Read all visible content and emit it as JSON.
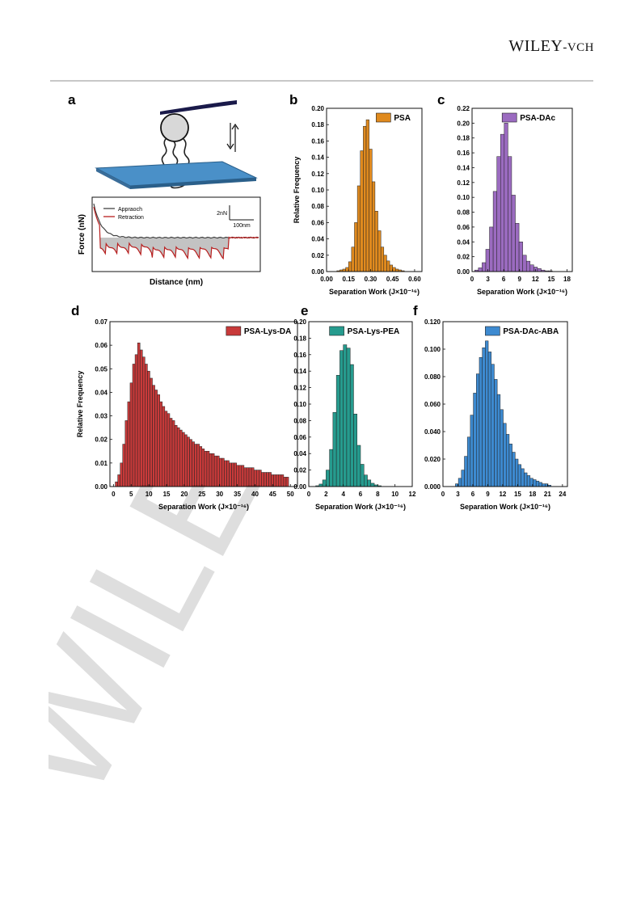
{
  "header": {
    "logo_main": "WILEY",
    "logo_suffix": "-VCH"
  },
  "watermark": "WILEY",
  "panel_a": {
    "letter": "a",
    "xlabel": "Distance (nm)",
    "ylabel": "Force (nN)",
    "legend": [
      "Appraoch",
      "Retraction"
    ],
    "scale_y": "2nN",
    "scale_x": "100nm",
    "colors": {
      "approach": "#444444",
      "retraction": "#b81e1e",
      "fill": "#bdbdbd",
      "substrate": "#4a90c8",
      "probe": "#1a1a4a"
    }
  },
  "charts": [
    {
      "id": "b",
      "letter": "b",
      "type": "bar",
      "legend": "PSA",
      "color": "#e08a1e",
      "xlabel": "Separation Work (J×10⁻¹⁶)",
      "ylabel": "Relative Frequency",
      "xlim": [
        0,
        0.65
      ],
      "ylim": [
        0,
        0.2
      ],
      "xticks": [
        "0.00",
        "0.15",
        "0.30",
        "0.45",
        "0.60"
      ],
      "xtick_values": [
        0,
        0.15,
        0.3,
        0.45,
        0.6
      ],
      "yticks": [
        "0.00",
        "0.02",
        "0.04",
        "0.06",
        "0.08",
        "0.10",
        "0.12",
        "0.14",
        "0.16",
        "0.18",
        "0.20"
      ],
      "bin_start": 0.07,
      "bin_width": 0.02,
      "values": [
        0.001,
        0.002,
        0.003,
        0.005,
        0.012,
        0.03,
        0.06,
        0.105,
        0.148,
        0.178,
        0.186,
        0.15,
        0.11,
        0.074,
        0.05,
        0.03,
        0.02,
        0.013,
        0.008,
        0.005,
        0.003,
        0.002,
        0.001
      ]
    },
    {
      "id": "c",
      "letter": "c",
      "type": "bar",
      "legend": "PSA-DAc",
      "color": "#9b6bc0",
      "xlabel": "Separation Work (J×10⁻¹⁶)",
      "ylabel": "",
      "xlim": [
        0,
        19
      ],
      "ylim": [
        0,
        0.22
      ],
      "xticks": [
        "0",
        "3",
        "6",
        "9",
        "12",
        "15",
        "18"
      ],
      "xtick_values": [
        0,
        3,
        6,
        9,
        12,
        15,
        18
      ],
      "yticks": [
        "0.00",
        "0.02",
        "0.04",
        "0.06",
        "0.08",
        "0.10",
        "0.12",
        "0.14",
        "0.16",
        "0.18",
        "0.20",
        "0.22"
      ],
      "bin_start": 0.5,
      "bin_width": 0.7,
      "values": [
        0.002,
        0.005,
        0.012,
        0.03,
        0.06,
        0.108,
        0.155,
        0.185,
        0.2,
        0.155,
        0.103,
        0.065,
        0.04,
        0.022,
        0.014,
        0.009,
        0.006,
        0.004,
        0.002,
        0.001,
        0.001
      ]
    },
    {
      "id": "d",
      "letter": "d",
      "type": "bar",
      "legend": "PSA-Lys-DA",
      "color": "#c83a3a",
      "xlabel": "Separation Work (J×10⁻¹⁶)",
      "ylabel": "Relative Frequency",
      "xlim": [
        -1,
        52
      ],
      "ylim": [
        0,
        0.07
      ],
      "xticks": [
        "0",
        "5",
        "10",
        "15",
        "20",
        "25",
        "30",
        "35",
        "40",
        "45",
        "50"
      ],
      "xtick_values": [
        0,
        5,
        10,
        15,
        20,
        25,
        30,
        35,
        40,
        45,
        50
      ],
      "yticks": [
        "0.00",
        "0.01",
        "0.02",
        "0.03",
        "0.04",
        "0.05",
        "0.06",
        "0.07"
      ],
      "bin_start": 0.5,
      "bin_width": 0.7,
      "values": [
        0.002,
        0.005,
        0.01,
        0.018,
        0.028,
        0.036,
        0.044,
        0.052,
        0.056,
        0.061,
        0.058,
        0.055,
        0.052,
        0.049,
        0.046,
        0.043,
        0.041,
        0.039,
        0.036,
        0.034,
        0.032,
        0.031,
        0.029,
        0.028,
        0.026,
        0.025,
        0.024,
        0.023,
        0.022,
        0.021,
        0.02,
        0.019,
        0.018,
        0.018,
        0.017,
        0.016,
        0.015,
        0.015,
        0.014,
        0.014,
        0.013,
        0.013,
        0.012,
        0.012,
        0.011,
        0.011,
        0.01,
        0.01,
        0.01,
        0.009,
        0.009,
        0.009,
        0.008,
        0.008,
        0.008,
        0.008,
        0.007,
        0.007,
        0.007,
        0.006,
        0.006,
        0.006,
        0.006,
        0.005,
        0.005,
        0.005,
        0.005,
        0.005,
        0.004,
        0.004
      ]
    },
    {
      "id": "e",
      "letter": "e",
      "type": "bar",
      "legend": "PSA-Lys-PEA",
      "color": "#269b8e",
      "xlabel": "Separation Work (J×10⁻¹⁶)",
      "ylabel": "",
      "xlim": [
        0,
        12
      ],
      "ylim": [
        0,
        0.2
      ],
      "xticks": [
        "0",
        "2",
        "4",
        "6",
        "8",
        "10",
        "12"
      ],
      "xtick_values": [
        0,
        2,
        4,
        6,
        8,
        10,
        12
      ],
      "yticks": [
        "0.00",
        "0.02",
        "0.04",
        "0.06",
        "0.08",
        "0.10",
        "0.12",
        "0.14",
        "0.16",
        "0.18",
        "0.20"
      ],
      "bin_start": 0.8,
      "bin_width": 0.4,
      "values": [
        0.001,
        0.003,
        0.008,
        0.02,
        0.045,
        0.09,
        0.135,
        0.165,
        0.172,
        0.168,
        0.148,
        0.088,
        0.05,
        0.027,
        0.014,
        0.008,
        0.004,
        0.002,
        0.001
      ]
    },
    {
      "id": "f",
      "letter": "f",
      "type": "bar",
      "legend": "PSA-DAc-ABA",
      "color": "#3d8ad0",
      "xlabel": "Separation Work (J×10⁻¹⁶)",
      "ylabel": "",
      "xlim": [
        0,
        25
      ],
      "ylim": [
        0,
        0.12
      ],
      "xticks": [
        "0",
        "3",
        "6",
        "9",
        "12",
        "15",
        "18",
        "21",
        "24"
      ],
      "xtick_values": [
        0,
        3,
        6,
        9,
        12,
        15,
        18,
        21,
        24
      ],
      "yticks": [
        "0.000",
        "0.020",
        "0.040",
        "0.060",
        "0.080",
        "0.100",
        "0.120"
      ],
      "bin_start": 2.5,
      "bin_width": 0.6,
      "values": [
        0.002,
        0.006,
        0.012,
        0.022,
        0.036,
        0.052,
        0.068,
        0.082,
        0.094,
        0.101,
        0.106,
        0.098,
        0.089,
        0.078,
        0.067,
        0.056,
        0.046,
        0.038,
        0.031,
        0.025,
        0.02,
        0.016,
        0.013,
        0.01,
        0.008,
        0.006,
        0.005,
        0.004,
        0.003,
        0.002,
        0.002,
        0.001
      ]
    }
  ]
}
